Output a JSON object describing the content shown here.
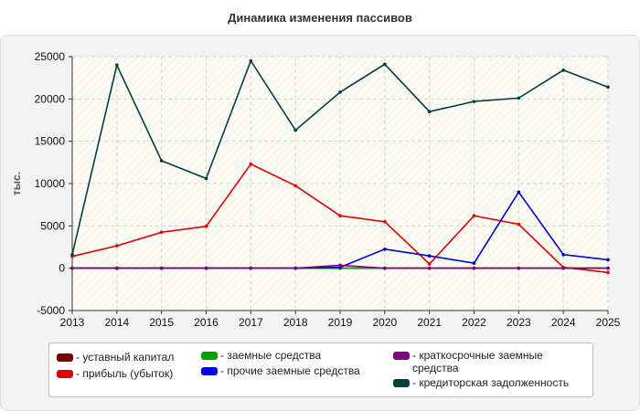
{
  "chart_data": {
    "type": "line",
    "title": "Динамика изменения пассивов",
    "ylabel": "тыс.",
    "xlabel": "",
    "x": [
      2013,
      2014,
      2015,
      2016,
      2017,
      2018,
      2019,
      2020,
      2021,
      2022,
      2023,
      2024,
      2025
    ],
    "ylim": [
      -5000,
      25000
    ],
    "yticks": [
      -5000,
      0,
      5000,
      10000,
      15000,
      20000,
      25000
    ],
    "grid": true,
    "legend_position": "bottom",
    "series": [
      {
        "name": "- уставный капитал",
        "color": "#7b0000",
        "values": [
          10,
          10,
          10,
          10,
          10,
          10,
          10,
          10,
          10,
          10,
          10,
          10,
          10
        ]
      },
      {
        "name": "- прибыль (убыток)",
        "color": "#e50000",
        "values": [
          1400,
          2650,
          4250,
          4950,
          12300,
          9750,
          6200,
          5500,
          500,
          6200,
          5200,
          100,
          -500
        ]
      },
      {
        "name": "- заемные средства",
        "color": "#00a000",
        "values": [
          0,
          0,
          0,
          0,
          0,
          0,
          0,
          0,
          0,
          0,
          0,
          0,
          0
        ]
      },
      {
        "name": "- прочие заемные средства",
        "color": "#0000e0",
        "values": [
          0,
          0,
          0,
          0,
          0,
          0,
          100,
          2250,
          1450,
          600,
          9000,
          1600,
          1000
        ]
      },
      {
        "name": "- краткосрочные заемные средства",
        "color": "#800080",
        "values": [
          0,
          0,
          0,
          0,
          0,
          0,
          350,
          0,
          0,
          0,
          0,
          0,
          0
        ]
      },
      {
        "name": "- кредиторская задолженность",
        "color": "#004040",
        "values": [
          1600,
          24000,
          12700,
          10600,
          24500,
          16300,
          20800,
          24100,
          18500,
          19700,
          20100,
          23400,
          21400
        ]
      }
    ]
  }
}
